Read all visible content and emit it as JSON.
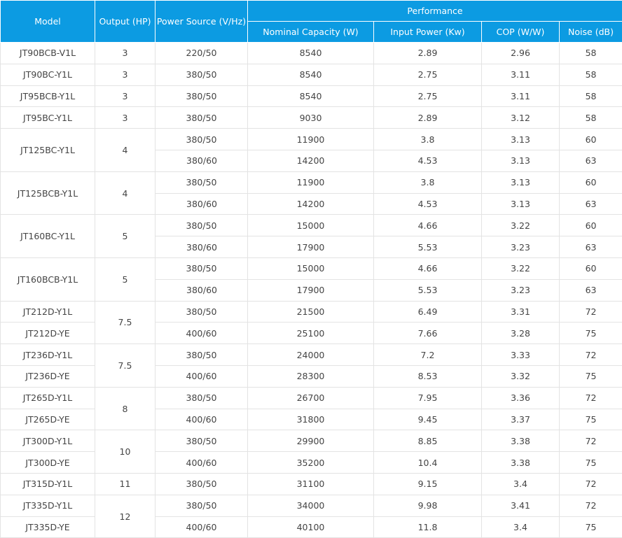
{
  "headers": {
    "model": "Model",
    "output": "Output (HP)",
    "power_source": "Power Source (V/Hz)",
    "performance": "Performance",
    "nominal_capacity": "Nominal Capacity (W)",
    "input_power": "Input Power (Kw)",
    "cop": "COP (W/W)",
    "noise": "Noise (dB)"
  },
  "rows": [
    {
      "model": "JT90BCB-V1L",
      "output": "3",
      "power": "220/50",
      "capacity": "8540",
      "input": "2.89",
      "cop": "2.96",
      "noise": "58"
    },
    {
      "model": "JT90BC-Y1L",
      "output": "3",
      "power": "380/50",
      "capacity": "8540",
      "input": "2.75",
      "cop": "3.11",
      "noise": "58"
    },
    {
      "model": "JT95BCB-Y1L",
      "output": "3",
      "power": "380/50",
      "capacity": "8540",
      "input": "2.75",
      "cop": "3.11",
      "noise": "58"
    },
    {
      "model": "JT95BC-Y1L",
      "output": "3",
      "power": "380/50",
      "capacity": "9030",
      "input": "2.89",
      "cop": "3.12",
      "noise": "58"
    },
    {
      "model": "JT125BC-Y1L",
      "output": "4",
      "power": "380/50",
      "capacity": "11900",
      "input": "3.8",
      "cop": "3.13",
      "noise": "60"
    },
    {
      "power": "380/60",
      "capacity": "14200",
      "input": "4.53",
      "cop": "3.13",
      "noise": "63"
    },
    {
      "model": "JT125BCB-Y1L",
      "output": "4",
      "power": "380/50",
      "capacity": "11900",
      "input": "3.8",
      "cop": "3.13",
      "noise": "60"
    },
    {
      "power": "380/60",
      "capacity": "14200",
      "input": "4.53",
      "cop": "3.13",
      "noise": "63"
    },
    {
      "model": "JT160BC-Y1L",
      "output": "5",
      "power": "380/50",
      "capacity": "15000",
      "input": "4.66",
      "cop": "3.22",
      "noise": "60"
    },
    {
      "power": "380/60",
      "capacity": "17900",
      "input": "5.53",
      "cop": "3.23",
      "noise": "63"
    },
    {
      "model": "JT160BCB-Y1L",
      "output": "5",
      "power": "380/50",
      "capacity": "15000",
      "input": "4.66",
      "cop": "3.22",
      "noise": "60"
    },
    {
      "power": "380/60",
      "capacity": "17900",
      "input": "5.53",
      "cop": "3.23",
      "noise": "63"
    },
    {
      "model": "JT212D-Y1L",
      "output": "7.5",
      "power": "380/50",
      "capacity": "21500",
      "input": "6.49",
      "cop": "3.31",
      "noise": "72"
    },
    {
      "model": "JT212D-YE",
      "power": "400/60",
      "capacity": "25100",
      "input": "7.66",
      "cop": "3.28",
      "noise": "75"
    },
    {
      "model": "JT236D-Y1L",
      "output": "7.5",
      "power": "380/50",
      "capacity": "24000",
      "input": "7.2",
      "cop": "3.33",
      "noise": "72"
    },
    {
      "model": "JT236D-YE",
      "power": "400/60",
      "capacity": "28300",
      "input": "8.53",
      "cop": "3.32",
      "noise": "75"
    },
    {
      "model": "JT265D-Y1L",
      "output": "8",
      "power": "380/50",
      "capacity": "26700",
      "input": "7.95",
      "cop": "3.36",
      "noise": "72"
    },
    {
      "model": "JT265D-YE",
      "power": "400/60",
      "capacity": "31800",
      "input": "9.45",
      "cop": "3.37",
      "noise": "75"
    },
    {
      "model": "JT300D-Y1L",
      "output": "10",
      "power": "380/50",
      "capacity": "29900",
      "input": "8.85",
      "cop": "3.38",
      "noise": "72"
    },
    {
      "model": "JT300D-YE",
      "power": "400/60",
      "capacity": "35200",
      "input": "10.4",
      "cop": "3.38",
      "noise": "75"
    },
    {
      "model": "JT315D-Y1L",
      "output": "11",
      "power": "380/50",
      "capacity": "31100",
      "input": "9.15",
      "cop": "3.4",
      "noise": "72"
    },
    {
      "model": "JT335D-Y1L",
      "output": "12",
      "power": "380/50",
      "capacity": "34000",
      "input": "9.98",
      "cop": "3.41",
      "noise": "72"
    },
    {
      "model": "JT335D-YE",
      "power": "400/60",
      "capacity": "40100",
      "input": "11.8",
      "cop": "3.4",
      "noise": "75"
    }
  ]
}
